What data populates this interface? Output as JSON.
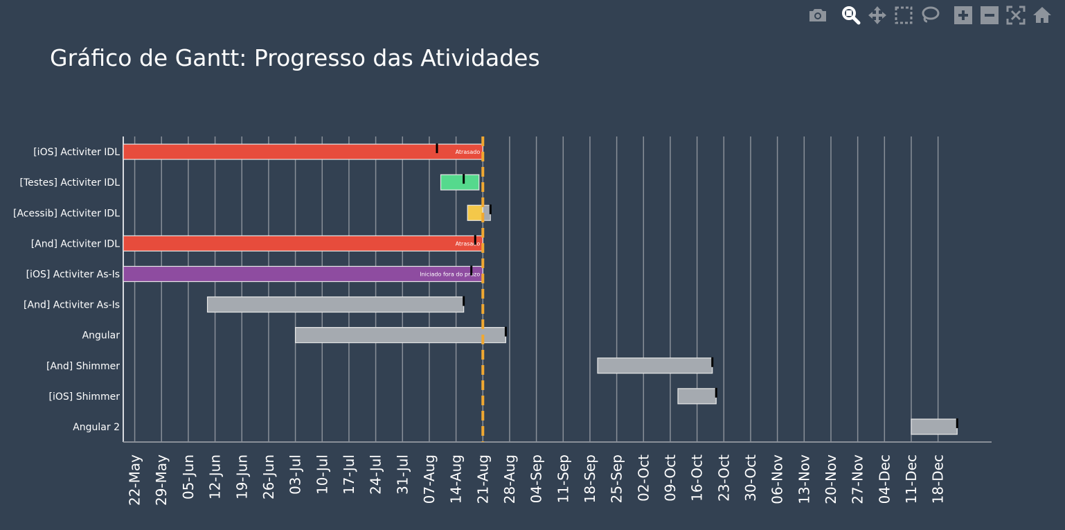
{
  "modebar": {
    "buttons": [
      {
        "icon": "camera-icon",
        "name": "download-plot-button"
      },
      {
        "icon": "zoom-icon",
        "name": "zoom-button",
        "active": true
      },
      {
        "icon": "pan-icon",
        "name": "pan-button"
      },
      {
        "icon": "box-select-icon",
        "name": "box-select-button"
      },
      {
        "icon": "lasso-select-icon",
        "name": "lasso-select-button"
      },
      {
        "icon": "zoom-in-icon",
        "name": "zoom-in-button"
      },
      {
        "icon": "zoom-out-icon",
        "name": "zoom-out-button"
      },
      {
        "icon": "autoscale-icon",
        "name": "autoscale-button"
      },
      {
        "icon": "home-icon",
        "name": "reset-axes-button"
      }
    ]
  },
  "chart_data": {
    "type": "gantt",
    "title": "Gráfico de Gantt: Progresso das Atividades",
    "xlabel": "",
    "ylabel": "",
    "x_ticks": [
      "22-May",
      "29-May",
      "05-Jun",
      "12-Jun",
      "19-Jun",
      "26-Jun",
      "03-Jul",
      "10-Jul",
      "17-Jul",
      "24-Jul",
      "31-Jul",
      "07-Aug",
      "14-Aug",
      "21-Aug",
      "28-Aug",
      "04-Sep",
      "11-Sep",
      "18-Sep",
      "25-Sep",
      "02-Oct",
      "09-Oct",
      "16-Oct",
      "23-Oct",
      "30-Oct",
      "06-Nov",
      "13-Nov",
      "20-Nov",
      "27-Nov",
      "04-Dec",
      "11-Dec",
      "18-Dec"
    ],
    "xlim": [
      "2023-05-19",
      "2024-01-01"
    ],
    "today": "2023-08-21",
    "grid": true,
    "tasks": [
      {
        "task": "[iOS] Activiter IDL",
        "start": "2023-05-19",
        "end": "2023-08-21",
        "marker": "2023-08-09",
        "color": "#e74c3c",
        "label": "Atrasado"
      },
      {
        "task": "[Testes] Activiter IDL",
        "start": "2023-08-10",
        "end": "2023-08-20",
        "marker": "2023-08-16",
        "color": "#55d98d",
        "label": ""
      },
      {
        "task": "[Acessib] Activiter IDL",
        "start": "2023-08-17",
        "end": "2023-08-21",
        "marker": "2023-08-23",
        "color": "#f4c84a",
        "label": "",
        "overdue_end": "2023-08-23"
      },
      {
        "task": "[And] Activiter IDL",
        "start": "2023-05-19",
        "end": "2023-08-21",
        "marker": "2023-08-19",
        "color": "#e74c3c",
        "label": "Atrasado"
      },
      {
        "task": "[iOS] Activiter As-Is",
        "start": "2023-05-19",
        "end": "2023-08-21",
        "marker": "2023-08-18",
        "color": "#8e4ca0",
        "label": "Iniciado fora do prazo"
      },
      {
        "task": "[And] Activiter As-Is",
        "start": "2023-06-10",
        "end": "2023-08-16",
        "marker": "2023-08-16",
        "color": "#a5aab0",
        "label": ""
      },
      {
        "task": "Angular",
        "start": "2023-07-03",
        "end": "2023-08-27",
        "marker": "2023-08-27",
        "color": "#a5aab0",
        "label": ""
      },
      {
        "task": "[And] Shimmer",
        "start": "2023-09-20",
        "end": "2023-10-20",
        "marker": "2023-10-20",
        "color": "#a5aab0",
        "label": ""
      },
      {
        "task": "[iOS] Shimmer",
        "start": "2023-10-11",
        "end": "2023-10-21",
        "marker": "2023-10-21",
        "color": "#a5aab0",
        "label": ""
      },
      {
        "task": "Angular 2",
        "start": "2023-12-11",
        "end": "2023-12-23",
        "marker": "2023-12-23",
        "color": "#a5aab0",
        "label": ""
      }
    ],
    "colors": {
      "background": "#334152",
      "grid": "#8a9099",
      "axis": "#d8dbe0",
      "today_line": "#f0a832",
      "marker": "#000000",
      "bar_border": "#e8e8e8"
    }
  }
}
